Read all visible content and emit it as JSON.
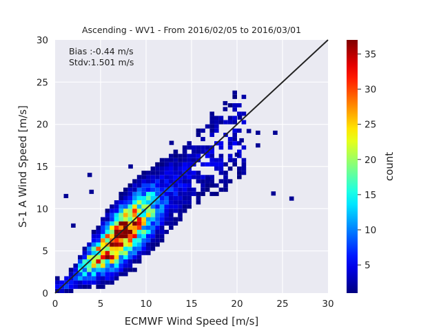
{
  "chart_data": {
    "type": "heatmap",
    "title": "Ascending - WV1 - From 2016/02/05 to 2016/03/01",
    "xlabel": "ECMWF Wind Speed [m/s]",
    "ylabel": "S-1 A Wind Speed [m/s]",
    "xlim": [
      0,
      30
    ],
    "ylim": [
      0,
      30
    ],
    "xticks": [
      "0",
      "5",
      "10",
      "15",
      "20",
      "25",
      "30"
    ],
    "yticks": [
      "0",
      "5",
      "10",
      "15",
      "20",
      "25",
      "30"
    ],
    "grid": true,
    "bin_size": 0.5,
    "annotations": [
      "Bias :-0.44 m/s",
      "Stdv:1.501 m/s"
    ],
    "reference_line": {
      "type": "identity",
      "color": "#222222",
      "points": [
        [
          0,
          0
        ],
        [
          30,
          30
        ]
      ]
    },
    "colorbar": {
      "label": "count",
      "range": [
        1,
        37
      ],
      "ticks": [
        "5",
        "10",
        "15",
        "20",
        "25",
        "30",
        "35"
      ],
      "colormap": "jet"
    },
    "density_model": {
      "ridge": [
        [
          1,
          0.8,
          0.6
        ],
        [
          2,
          1.8,
          0.8
        ],
        [
          3,
          2.8,
          1.1
        ],
        [
          4,
          3.7,
          1.4
        ],
        [
          5,
          4.6,
          1.6
        ],
        [
          6,
          5.5,
          1.8
        ],
        [
          7,
          6.6,
          1.9
        ],
        [
          8,
          7.5,
          2.0
        ],
        [
          9,
          8.5,
          2.1
        ],
        [
          10,
          9.4,
          2.2
        ],
        [
          11,
          10.4,
          2.3
        ],
        [
          12,
          11.3,
          2.4
        ],
        [
          13,
          12.3,
          2.5
        ],
        [
          14,
          13.3,
          2.6
        ],
        [
          15,
          14.2,
          2.6
        ],
        [
          16,
          15.2,
          2.8
        ],
        [
          17,
          16.2,
          3.0
        ],
        [
          18,
          17.0,
          3.2
        ],
        [
          19,
          18.0,
          3.4
        ],
        [
          20,
          19.0,
          3.6
        ]
      ],
      "peak_count": 37,
      "peak_at": [
        7,
        6.8
      ]
    },
    "outliers": [
      [
        18.7,
        22.5
      ],
      [
        18.7,
        21.8
      ],
      [
        20.3,
        20.8
      ],
      [
        21.3,
        19.2
      ],
      [
        22.3,
        19.0
      ],
      [
        24.2,
        19.0
      ],
      [
        22.3,
        17.5
      ],
      [
        20.5,
        18.1
      ],
      [
        24.0,
        11.8
      ],
      [
        26.0,
        11.2
      ],
      [
        1.2,
        11.5
      ],
      [
        4.0,
        12.0
      ],
      [
        2.0,
        8.0
      ],
      [
        8.3,
        15.0
      ],
      [
        12.8,
        17.8
      ],
      [
        3.8,
        14.0
      ],
      [
        20.0,
        16.4
      ],
      [
        16.8,
        13.5
      ]
    ]
  }
}
